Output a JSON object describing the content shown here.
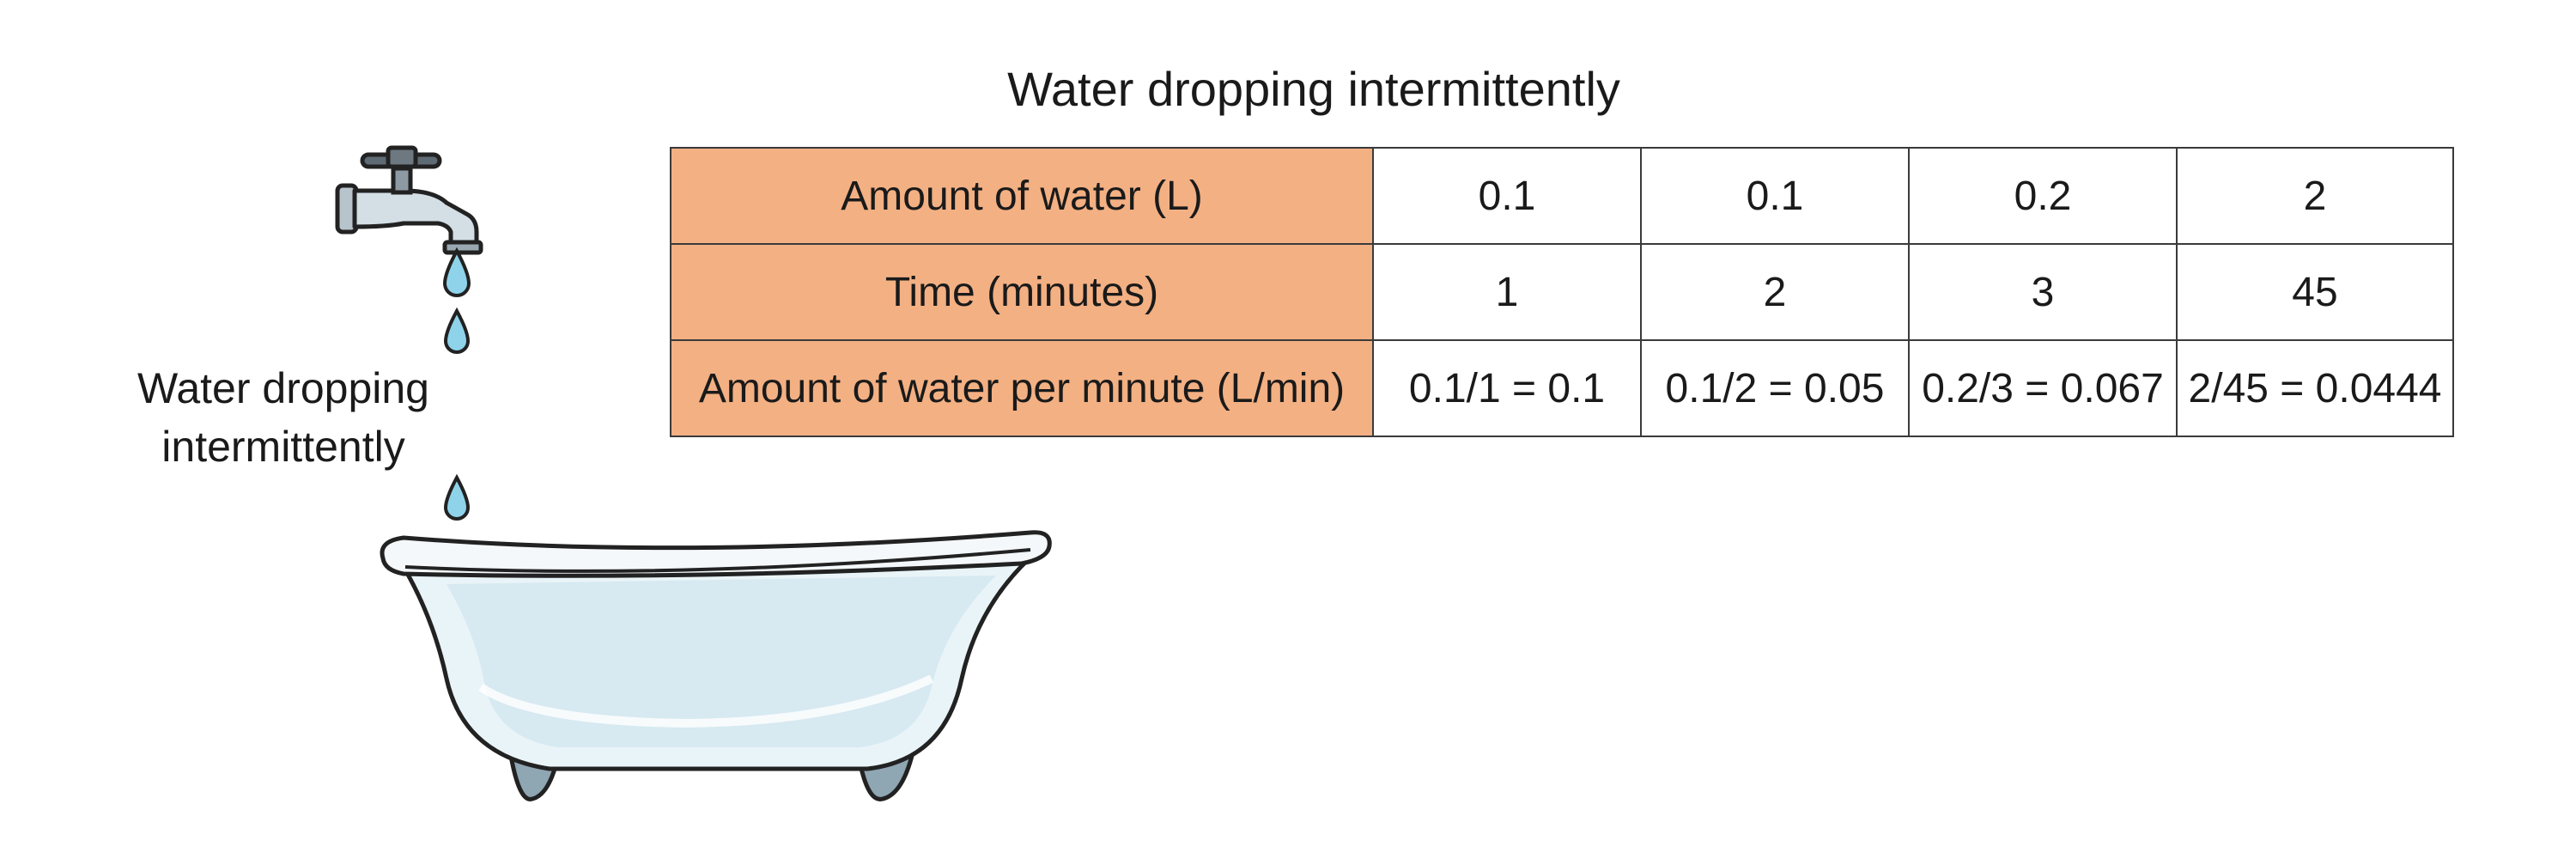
{
  "table": {
    "title": "Water dropping intermittently",
    "rows": [
      {
        "label": "Amount of water (L)",
        "cells": [
          "0.1",
          "0.1",
          "0.2",
          "2"
        ]
      },
      {
        "label": "Time (minutes)",
        "cells": [
          "1",
          "2",
          "3",
          "45"
        ]
      },
      {
        "label": "Amount of water per minute (L/min)",
        "cells": [
          "0.1/1 = 0.1",
          "0.1/2 = 0.05",
          "0.2/3 = 0.067",
          "2/45 = 0.0444"
        ]
      }
    ]
  },
  "illustration": {
    "caption_line1": "Water dropping",
    "caption_line2": "intermittently",
    "icons": [
      "faucet-icon",
      "water-drop-icon",
      "bathtub-icon"
    ],
    "colors": {
      "header_fill": "#f3b083",
      "water_drop": "#8fd3ea",
      "faucet": "#c9d6df",
      "bathtub": "#e9f4f8"
    }
  }
}
